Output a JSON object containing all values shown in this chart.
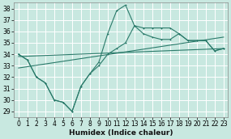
{
  "xlabel": "Humidex (Indice chaleur)",
  "bg_color": "#c8e8e0",
  "line_color": "#2a7a6a",
  "grid_color": "#b0d8d0",
  "xlim": [
    -0.5,
    23.5
  ],
  "ylim": [
    28.5,
    38.5
  ],
  "yticks": [
    29,
    30,
    31,
    32,
    33,
    34,
    35,
    36,
    37,
    38
  ],
  "xticks": [
    0,
    1,
    2,
    3,
    4,
    5,
    6,
    7,
    8,
    9,
    10,
    11,
    12,
    13,
    14,
    15,
    16,
    17,
    18,
    19,
    20,
    21,
    22,
    23
  ],
  "line1_x": [
    0,
    1,
    2,
    3,
    4,
    5,
    6,
    7,
    8,
    9,
    10,
    11,
    12,
    13,
    14,
    15,
    16,
    17,
    18,
    19,
    20,
    21,
    22,
    23
  ],
  "line1_y": [
    34.0,
    33.5,
    32.0,
    31.5,
    30.0,
    29.8,
    29.0,
    31.2,
    32.3,
    33.3,
    35.8,
    37.8,
    38.3,
    36.5,
    36.3,
    36.3,
    36.3,
    36.3,
    35.8,
    35.2,
    35.2,
    35.2,
    34.3,
    34.5
  ],
  "line2_x": [
    0,
    1,
    2,
    3,
    4,
    5,
    6,
    7,
    8,
    9,
    10,
    11,
    12,
    13,
    14,
    15,
    16,
    17,
    18,
    19,
    20,
    21,
    22,
    23
  ],
  "line2_y": [
    34.0,
    33.5,
    32.0,
    31.5,
    30.0,
    29.8,
    29.0,
    31.2,
    32.3,
    33.0,
    34.0,
    34.5,
    35.0,
    36.5,
    35.8,
    35.5,
    35.3,
    35.3,
    35.8,
    35.2,
    35.2,
    35.2,
    34.3,
    34.5
  ],
  "line3_x": [
    0,
    23
  ],
  "line3_y": [
    32.8,
    35.5
  ],
  "line4_x": [
    0,
    23
  ],
  "line4_y": [
    33.8,
    34.5
  ],
  "marker_x1": [
    0,
    1,
    2,
    3,
    4,
    5,
    6,
    7,
    8,
    9,
    10,
    11,
    12,
    13,
    14,
    15,
    16,
    17,
    18,
    22,
    23
  ],
  "marker_y1": [
    34.0,
    33.5,
    32.0,
    31.5,
    30.0,
    29.8,
    29.0,
    31.2,
    32.3,
    33.3,
    35.8,
    37.8,
    38.3,
    36.5,
    36.3,
    36.3,
    36.3,
    36.3,
    35.8,
    34.3,
    34.5
  ]
}
